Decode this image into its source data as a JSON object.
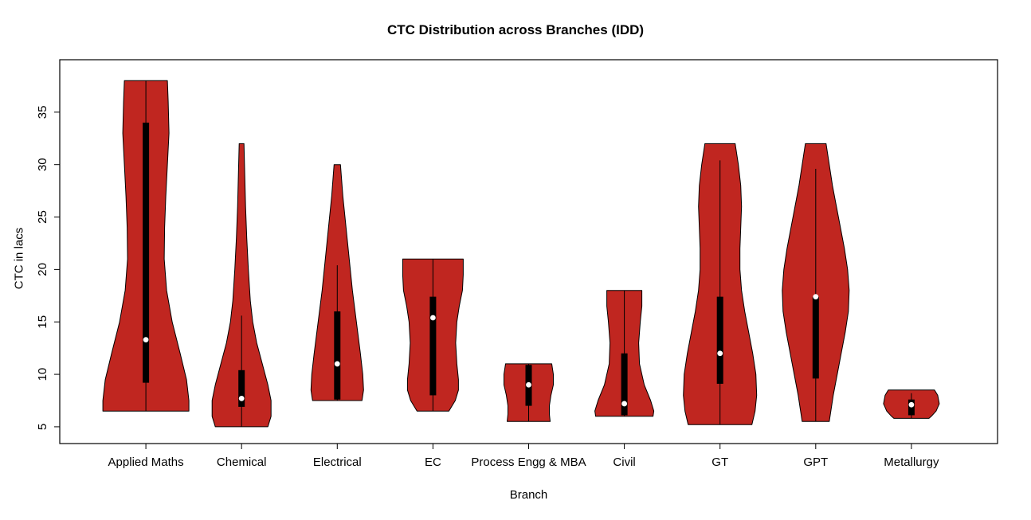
{
  "chart_data": {
    "type": "violin",
    "title": "CTC Distribution across Branches (IDD)",
    "xlabel": "Branch",
    "ylabel": "CTC in lacs",
    "categories": [
      "Applied Maths",
      "Chemical",
      "Electrical",
      "EC",
      "Process Engg & MBA",
      "Civil",
      "GT",
      "GPT",
      "Metallurgy"
    ],
    "y_ticks": [
      5,
      10,
      15,
      20,
      25,
      30,
      35
    ],
    "violin_fill": "#C02620",
    "violin_stroke": "#000000",
    "grid": false,
    "legend": "none",
    "axes": {
      "plot_left": 75,
      "plot_right": 1252,
      "plot_top": 75,
      "plot_bottom": 557,
      "xlim": [
        0.1,
        9.9
      ],
      "ylim": [
        3.4,
        40.0
      ]
    },
    "series": [
      {
        "name": "Applied Maths",
        "range": [
          6.5,
          38
        ],
        "q1": 9.2,
        "q3": 34,
        "median": 13.3,
        "whisker": [
          6.5,
          38
        ],
        "shape": [
          [
            38,
            27
          ],
          [
            36,
            28
          ],
          [
            33,
            29
          ],
          [
            30,
            27
          ],
          [
            27,
            25
          ],
          [
            24,
            23.5
          ],
          [
            21,
            23
          ],
          [
            18,
            26
          ],
          [
            15,
            33
          ],
          [
            12,
            43
          ],
          [
            9.5,
            51
          ],
          [
            7.5,
            54
          ],
          [
            6.5,
            54
          ]
        ]
      },
      {
        "name": "Chemical",
        "range": [
          5,
          32
        ],
        "q1": 6.9,
        "q3": 10.4,
        "median": 7.7,
        "whisker": [
          5,
          15.6
        ],
        "shape": [
          [
            32,
            3
          ],
          [
            29,
            4
          ],
          [
            26,
            5
          ],
          [
            23,
            6.5
          ],
          [
            20,
            8.5
          ],
          [
            17,
            11
          ],
          [
            15,
            14
          ],
          [
            13,
            19
          ],
          [
            11,
            26
          ],
          [
            9,
            33
          ],
          [
            7.5,
            37
          ],
          [
            6,
            37
          ],
          [
            5,
            33
          ]
        ]
      },
      {
        "name": "Electrical",
        "range": [
          7.5,
          30
        ],
        "q1": 7.6,
        "q3": 16,
        "median": 11,
        "whisker": [
          7.5,
          20.4
        ],
        "shape": [
          [
            30,
            4
          ],
          [
            27,
            7
          ],
          [
            24,
            11
          ],
          [
            21,
            15
          ],
          [
            18,
            19
          ],
          [
            15,
            24
          ],
          [
            12,
            29
          ],
          [
            10,
            32
          ],
          [
            8.5,
            33
          ],
          [
            7.5,
            31
          ]
        ]
      },
      {
        "name": "EC",
        "range": [
          6.5,
          21
        ],
        "q1": 8,
        "q3": 17.4,
        "median": 15.4,
        "whisker": [
          6.5,
          21
        ],
        "shape": [
          [
            21,
            38
          ],
          [
            19.5,
            38
          ],
          [
            18,
            37
          ],
          [
            16.5,
            33
          ],
          [
            15,
            30
          ],
          [
            13,
            28.5
          ],
          [
            11,
            30
          ],
          [
            9.5,
            32
          ],
          [
            8.5,
            32
          ],
          [
            7.5,
            28
          ],
          [
            6.5,
            20
          ]
        ]
      },
      {
        "name": "Process Engg & MBA",
        "range": [
          5.5,
          11
        ],
        "q1": 7,
        "q3": 10.9,
        "median": 9,
        "whisker": [
          5.5,
          11
        ],
        "shape": [
          [
            11,
            29
          ],
          [
            10,
            31
          ],
          [
            9,
            31
          ],
          [
            8,
            28
          ],
          [
            7,
            26
          ],
          [
            6.2,
            26
          ],
          [
            5.5,
            27
          ]
        ]
      },
      {
        "name": "Civil",
        "range": [
          6,
          18
        ],
        "q1": 6.1,
        "q3": 12,
        "median": 7.2,
        "whisker": [
          6,
          18
        ],
        "shape": [
          [
            18,
            22
          ],
          [
            16.5,
            22
          ],
          [
            15,
            20
          ],
          [
            13,
            18
          ],
          [
            11,
            19
          ],
          [
            9,
            25
          ],
          [
            7.5,
            33
          ],
          [
            6.5,
            37
          ],
          [
            6,
            36
          ]
        ]
      },
      {
        "name": "GT",
        "range": [
          5.2,
          32
        ],
        "q1": 9.1,
        "q3": 17.4,
        "median": 12,
        "whisker": [
          5.2,
          30.4
        ],
        "shape": [
          [
            32,
            19
          ],
          [
            30,
            23
          ],
          [
            28,
            26
          ],
          [
            26,
            27
          ],
          [
            24,
            26
          ],
          [
            22,
            25
          ],
          [
            20,
            25
          ],
          [
            18,
            27
          ],
          [
            16,
            31
          ],
          [
            14,
            36
          ],
          [
            12,
            41
          ],
          [
            10,
            45
          ],
          [
            8,
            46
          ],
          [
            6.5,
            44
          ],
          [
            5.2,
            40
          ]
        ]
      },
      {
        "name": "GPT",
        "range": [
          5.5,
          32
        ],
        "q1": 9.6,
        "q3": 17.4,
        "median": 17.4,
        "whisker": [
          5.5,
          29.6
        ],
        "shape": [
          [
            32,
            13
          ],
          [
            30,
            17
          ],
          [
            28,
            21
          ],
          [
            26,
            26
          ],
          [
            24,
            31
          ],
          [
            22,
            36
          ],
          [
            20,
            40
          ],
          [
            18,
            42
          ],
          [
            16,
            41
          ],
          [
            14,
            37
          ],
          [
            12,
            32
          ],
          [
            10,
            27
          ],
          [
            8,
            22
          ],
          [
            6.5,
            19
          ],
          [
            5.5,
            17
          ]
        ]
      },
      {
        "name": "Metallurgy",
        "range": [
          5.8,
          8.5
        ],
        "q1": 6.1,
        "q3": 7.6,
        "median": 7.1,
        "whisker": [
          5.8,
          8.2
        ],
        "shape": [
          [
            8.5,
            29
          ],
          [
            8,
            33
          ],
          [
            7.2,
            35
          ],
          [
            6.5,
            31
          ],
          [
            6,
            25
          ],
          [
            5.8,
            22
          ]
        ]
      }
    ]
  }
}
